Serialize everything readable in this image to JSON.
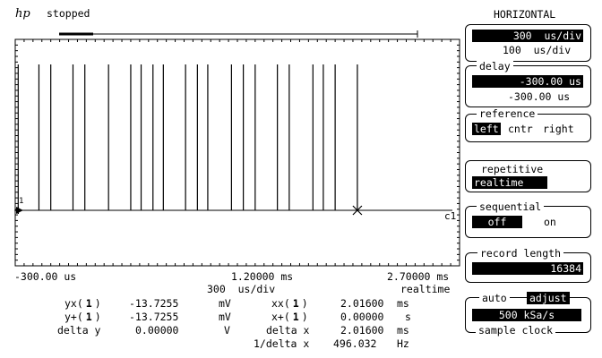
{
  "header": {
    "logo": "hp",
    "status": "stopped"
  },
  "trace": {
    "channel_label": "c1",
    "ground_marker": "1",
    "pulse_times_ms": [
      -0.28,
      -0.14,
      -0.06,
      0.09,
      0.17,
      0.33,
      0.48,
      0.55,
      0.63,
      0.7,
      0.85,
      0.93,
      1.0,
      1.16,
      1.24,
      1.32,
      1.47,
      1.55,
      1.71,
      1.78,
      1.86,
      2.01
    ]
  },
  "axis": {
    "left_time": "-300.00 us",
    "center_time": "1.20000 ms",
    "right_time": "2.70000 ms",
    "scale": "300  us/div",
    "mode": "realtime"
  },
  "measurements": {
    "yx_label": "yx(",
    "yx_ch": "1",
    "yx_close": ")",
    "yx_value": "-13.7255",
    "yx_unit": "mV",
    "yp_label": "y+(",
    "yp_ch": "1",
    "yp_close": ")",
    "yp_value": "-13.7255",
    "yp_unit": "mV",
    "dy_label": "delta y",
    "dy_value": "0.00000",
    "dy_unit": "V",
    "xx_label": "xx(",
    "xx_ch": "1",
    "xx_close": ")",
    "xx_value": "2.01600",
    "xx_unit": "ms",
    "xp_label": "x+(",
    "xp_ch": "1",
    "xp_close": ")",
    "xp_value": "0.00000",
    "xp_unit": "s",
    "dx_label": "delta x",
    "dx_value": "2.01600",
    "dx_unit": "ms",
    "idx_label": "1/delta x",
    "idx_value": "496.032",
    "idx_unit": "Hz"
  },
  "panel": {
    "title": "HORIZONTAL",
    "timebase_value": "300  us/div",
    "timebase_sub": "100  us/div",
    "delay_label": "delay",
    "delay_value": "-300.00 us",
    "delay_sub": "-300.00 us",
    "reference_label": "reference",
    "ref_left": "left",
    "ref_cntr": "cntr",
    "ref_right": "right",
    "repetitive_label": "repetitive",
    "repetitive_value": "realtime",
    "sequential_label": "sequential",
    "seq_off": "off",
    "seq_on": "on",
    "record_length_label": "record length",
    "record_length_value": "16384",
    "auto_label": "auto",
    "adjust_label": "adjust",
    "sample_rate": "500 kSa/s",
    "sample_clock_label": "sample clock"
  }
}
